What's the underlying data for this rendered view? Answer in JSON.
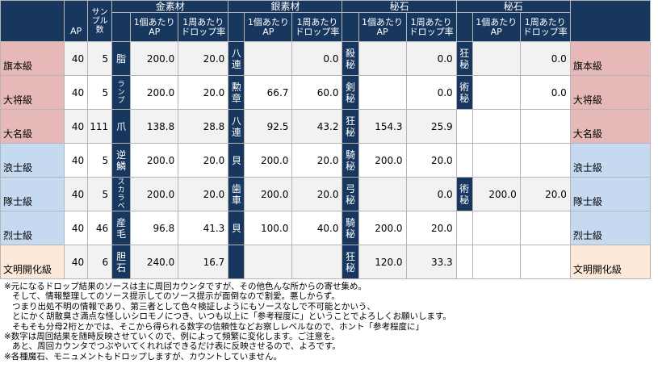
{
  "header": {
    "ap": "AP",
    "samples": "サンプル数",
    "groups": [
      "金素材",
      "銀素材",
      "秘石",
      "秘石"
    ],
    "per_ap": "1個あたりAP",
    "drop_rate": "1周あたりドロップ率"
  },
  "rows": [
    {
      "rank": "旗本級",
      "ap": "40",
      "samples": "5",
      "g1_mat": "脂",
      "g1_ap": "200.0",
      "g1_rate": "20.0",
      "g2_mat": "八連",
      "g2_ap": "",
      "g2_rate": "0.0",
      "g3_mat": "殺秘",
      "g3_ap": "",
      "g3_rate": "0.0",
      "g4_mat": "狂秘",
      "g4_ap": "",
      "g4_rate": "0.0"
    },
    {
      "rank": "大将級",
      "ap": "40",
      "samples": "5",
      "g1_mat": "ランプ",
      "g1_ap": "200.0",
      "g1_rate": "20.0",
      "g2_mat": "勲章",
      "g2_ap": "66.7",
      "g2_rate": "60.0",
      "g3_mat": "剣秘",
      "g3_ap": "",
      "g3_rate": "0.0",
      "g4_mat": "術秘",
      "g4_ap": "",
      "g4_rate": "0.0"
    },
    {
      "rank": "大名級",
      "ap": "40",
      "samples": "111",
      "g1_mat": "爪",
      "g1_ap": "138.8",
      "g1_rate": "28.8",
      "g2_mat": "八連",
      "g2_ap": "92.5",
      "g2_rate": "43.2",
      "g3_mat": "狂秘",
      "g3_ap": "154.3",
      "g3_rate": "25.9",
      "g4_mat": "",
      "g4_ap": "",
      "g4_rate": ""
    },
    {
      "rank": "浪士級",
      "ap": "40",
      "samples": "5",
      "g1_mat": "逆鱗",
      "g1_ap": "200.0",
      "g1_rate": "20.0",
      "g2_mat": "貝",
      "g2_ap": "200.0",
      "g2_rate": "20.0",
      "g3_mat": "騎秘",
      "g3_ap": "200.0",
      "g3_rate": "20.0",
      "g4_mat": "",
      "g4_ap": "",
      "g4_rate": ""
    },
    {
      "rank": "隊士級",
      "ap": "40",
      "samples": "5",
      "g1_mat": "スカラベ",
      "g1_ap": "200.0",
      "g1_rate": "20.0",
      "g2_mat": "歯車",
      "g2_ap": "200.0",
      "g2_rate": "20.0",
      "g3_mat": "弓秘",
      "g3_ap": "",
      "g3_rate": "0.0",
      "g4_mat": "術秘",
      "g4_ap": "200.0",
      "g4_rate": "20.0"
    },
    {
      "rank": "烈士級",
      "ap": "40",
      "samples": "46",
      "g1_mat": "産毛",
      "g1_ap": "96.8",
      "g1_rate": "41.3",
      "g2_mat": "貝",
      "g2_ap": "100.0",
      "g2_rate": "40.0",
      "g3_mat": "騎秘",
      "g3_ap": "200.0",
      "g3_rate": "20.0",
      "g4_mat": "",
      "g4_ap": "",
      "g4_rate": ""
    },
    {
      "rank": "文明開化級",
      "ap": "40",
      "samples": "6",
      "g1_mat": "胆石",
      "g1_ap": "240.0",
      "g1_rate": "16.7",
      "g2_mat": "",
      "g2_ap": "",
      "g2_rate": "",
      "g3_mat": "狂秘",
      "g3_ap": "120.0",
      "g3_rate": "33.3",
      "g4_mat": "",
      "g4_ap": "",
      "g4_rate": ""
    }
  ],
  "notes": [
    "※元になるドロップ結果のソースは主に周回カウンタですが、その他色んな所からの寄せ集め。",
    "そして、情報整理してのソース提示してのソース提示が面倒なので割愛。悪しからず。",
    "つまり出処不明の情報であり、第三者として色々検証しようにもソースなしで不可能とかいう、",
    "とにかく胡散臭さ満点な怪しいシロモノにつき、いつも以上に「参考程度に」ということでよろしくお願いします。",
    "そもそも分母2桁とかでは、そこから得られる数字の信頼性などお察しレベルなので、ホント「参考程度に」",
    "※数字は周回結果を随時反映させていくので、例によって頻繁に変化します。ご注意を。",
    "あと、周回カウンタでつぶやいてくれればできるだけ表に反映させるので、よろです。",
    "※各種魔石、モニュメントもドロップしますが、カウントしていません。"
  ],
  "colors": {
    "header": "#17375e",
    "pink": "#e6b9b8",
    "blue": "#c5d9f1",
    "peach": "#fde9d9"
  }
}
